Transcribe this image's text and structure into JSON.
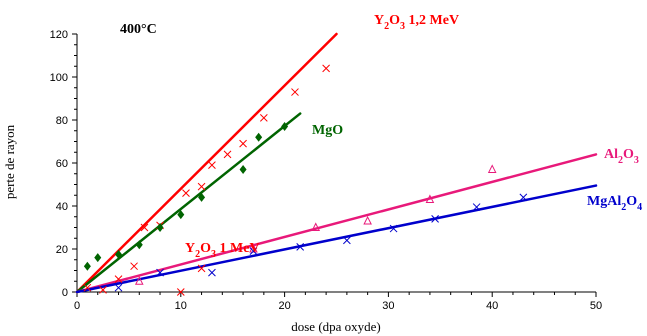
{
  "chart_data": {
    "type": "scatter",
    "title": "",
    "xlabel": "dose (dpa oxyde)",
    "ylabel": "perte de rayon",
    "xlim": [
      0,
      50
    ],
    "ylim": [
      0,
      120
    ],
    "xticks": [
      0,
      10,
      20,
      30,
      40,
      50
    ],
    "yticks": [
      0,
      20,
      40,
      60,
      80,
      100,
      120
    ],
    "grid": false,
    "annotations": {
      "temperature": "400°C"
    },
    "series": [
      {
        "name": "Y2O3 1,2 MeV",
        "label_parts": [
          "Y",
          "2",
          "O",
          "3",
          "1,2 MeV"
        ],
        "color": "#ff0000",
        "marker": "x",
        "points": [
          [
            1,
            2
          ],
          [
            4,
            6
          ],
          [
            5.5,
            12
          ],
          [
            6.5,
            30
          ],
          [
            8,
            31
          ],
          [
            10.5,
            46
          ],
          [
            12,
            49
          ],
          [
            13,
            59
          ],
          [
            14.5,
            64
          ],
          [
            16,
            69
          ],
          [
            18,
            81
          ],
          [
            21,
            93
          ],
          [
            24,
            104
          ]
        ],
        "fit": [
          [
            0,
            0
          ],
          [
            25,
            120
          ]
        ]
      },
      {
        "name": "MgO",
        "label_parts": [
          "MgO"
        ],
        "color": "#006400",
        "marker": "diamond",
        "points": [
          [
            1,
            12
          ],
          [
            2,
            16
          ],
          [
            4,
            17.5
          ],
          [
            6,
            22
          ],
          [
            8,
            30
          ],
          [
            10,
            36
          ],
          [
            12,
            44
          ],
          [
            16,
            57
          ],
          [
            17.5,
            72
          ],
          [
            20,
            77
          ]
        ],
        "fit": [
          [
            0,
            0
          ],
          [
            21.5,
            83
          ]
        ]
      },
      {
        "name": "Al2O3",
        "label_parts": [
          "Al",
          "2",
          "O",
          "3"
        ],
        "color": "#e8197a",
        "marker": "triangle",
        "points": [
          [
            6,
            5
          ],
          [
            17,
            20
          ],
          [
            23,
            30
          ],
          [
            28,
            33
          ],
          [
            34,
            43
          ],
          [
            40,
            57
          ]
        ],
        "fit": [
          [
            0,
            0
          ],
          [
            50,
            64
          ]
        ]
      },
      {
        "name": "MgAl2O4",
        "label_parts": [
          "MgAl",
          "2",
          "O",
          "4"
        ],
        "color": "#0000cc",
        "marker": "x",
        "points": [
          [
            4,
            2
          ],
          [
            8,
            9
          ],
          [
            13,
            9
          ],
          [
            17,
            19
          ],
          [
            21.5,
            21
          ],
          [
            26,
            24
          ],
          [
            30.5,
            29.5
          ],
          [
            34.5,
            34
          ],
          [
            38.5,
            39.5
          ],
          [
            43,
            44
          ]
        ],
        "fit": [
          [
            0,
            0
          ],
          [
            50,
            49.5
          ]
        ]
      },
      {
        "name": "Y2O3 1 MeV",
        "label_parts": [
          "Y",
          "2",
          "O",
          "3",
          "1 MeV"
        ],
        "color": "#ff0000",
        "marker": "x",
        "points": [
          [
            2.5,
            1
          ],
          [
            10,
            0
          ],
          [
            12,
            11
          ]
        ],
        "fit": []
      }
    ]
  }
}
